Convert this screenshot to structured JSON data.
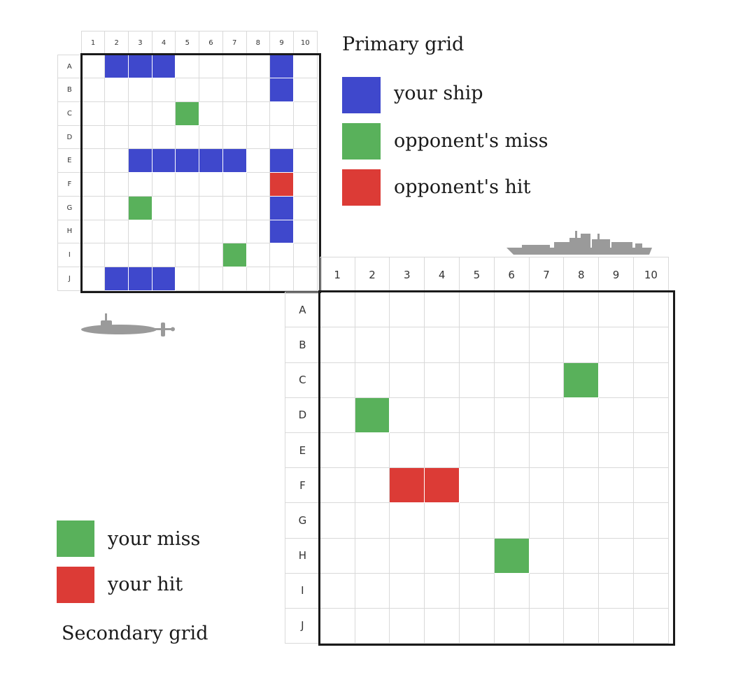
{
  "colors": {
    "ship": "#3f48cc",
    "miss": "#59b15b",
    "hit": "#dc3b36",
    "grid_line": "#d9d9d9",
    "frame": "#1a1a1a",
    "vessel_gray": "#9a9a9a"
  },
  "columns": [
    "1",
    "2",
    "3",
    "4",
    "5",
    "6",
    "7",
    "8",
    "9",
    "10"
  ],
  "rows": [
    "A",
    "B",
    "C",
    "D",
    "E",
    "F",
    "G",
    "H",
    "I",
    "J"
  ],
  "primary": {
    "title": "Primary grid",
    "legend": [
      {
        "key": "ship",
        "label": "your ship"
      },
      {
        "key": "miss",
        "label": "opponent's miss"
      },
      {
        "key": "hit",
        "label": "opponent's hit"
      }
    ],
    "cells": [
      {
        "row": "A",
        "col": "2",
        "state": "ship"
      },
      {
        "row": "A",
        "col": "3",
        "state": "ship"
      },
      {
        "row": "A",
        "col": "4",
        "state": "ship"
      },
      {
        "row": "A",
        "col": "9",
        "state": "ship"
      },
      {
        "row": "B",
        "col": "9",
        "state": "ship"
      },
      {
        "row": "C",
        "col": "5",
        "state": "miss"
      },
      {
        "row": "E",
        "col": "3",
        "state": "ship"
      },
      {
        "row": "E",
        "col": "4",
        "state": "ship"
      },
      {
        "row": "E",
        "col": "5",
        "state": "ship"
      },
      {
        "row": "E",
        "col": "6",
        "state": "ship"
      },
      {
        "row": "E",
        "col": "7",
        "state": "ship"
      },
      {
        "row": "E",
        "col": "9",
        "state": "ship"
      },
      {
        "row": "F",
        "col": "9",
        "state": "hit"
      },
      {
        "row": "G",
        "col": "3",
        "state": "miss"
      },
      {
        "row": "G",
        "col": "9",
        "state": "ship"
      },
      {
        "row": "H",
        "col": "9",
        "state": "ship"
      },
      {
        "row": "I",
        "col": "7",
        "state": "miss"
      },
      {
        "row": "J",
        "col": "2",
        "state": "ship"
      },
      {
        "row": "J",
        "col": "3",
        "state": "ship"
      },
      {
        "row": "J",
        "col": "4",
        "state": "ship"
      }
    ]
  },
  "secondary": {
    "title": "Secondary grid",
    "legend": [
      {
        "key": "miss",
        "label": "your miss"
      },
      {
        "key": "hit",
        "label": "your hit"
      }
    ],
    "cells": [
      {
        "row": "C",
        "col": "8",
        "state": "miss"
      },
      {
        "row": "D",
        "col": "2",
        "state": "miss"
      },
      {
        "row": "F",
        "col": "3",
        "state": "hit"
      },
      {
        "row": "F",
        "col": "4",
        "state": "hit"
      },
      {
        "row": "H",
        "col": "6",
        "state": "miss"
      }
    ]
  },
  "illustrations": [
    {
      "name": "submarine-icon"
    },
    {
      "name": "warship-icon"
    }
  ]
}
